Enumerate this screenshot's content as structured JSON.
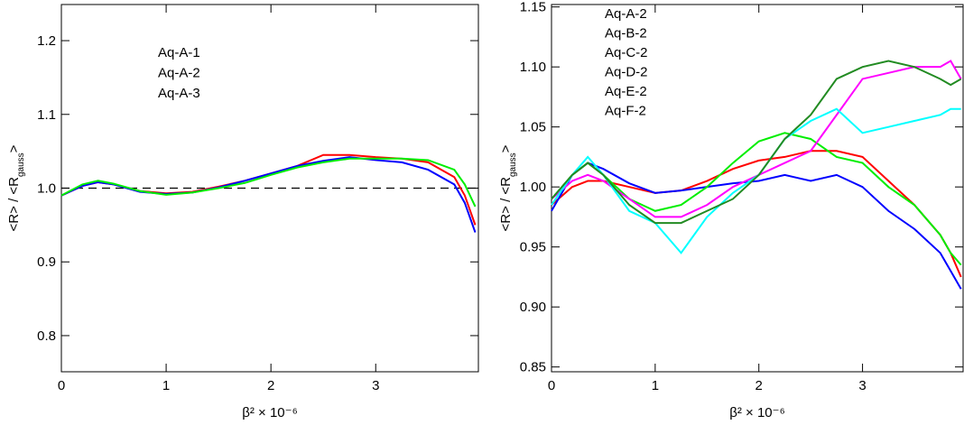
{
  "chart_data": [
    {
      "type": "line",
      "xlabel": "β² × 10⁻⁶",
      "ylabel": {
        "main": "<R> / <R",
        "sub": "gauss",
        "end": ">"
      },
      "x": [
        0,
        0.2,
        0.35,
        0.5,
        0.75,
        1.0,
        1.25,
        1.5,
        1.75,
        2.0,
        2.25,
        2.5,
        2.75,
        3.0,
        3.25,
        3.5,
        3.75,
        3.85,
        3.95
      ],
      "xlim": [
        0,
        3.98
      ],
      "xticks": [
        0,
        1,
        2,
        3
      ],
      "ylim": [
        0.751,
        1.249
      ],
      "yticks": [
        0.8,
        0.9,
        {
          "value": 1,
          "label": "1.0"
        },
        1.1,
        1.2
      ],
      "hline": 1,
      "series": [
        {
          "name": "Aq-A-1",
          "color": "#ff0000",
          "values": [
            0.99,
            1.003,
            1.008,
            1.005,
            0.996,
            0.993,
            0.995,
            1.002,
            1.01,
            1.02,
            1.03,
            1.045,
            1.045,
            1.042,
            1.04,
            1.035,
            1.015,
            0.99,
            0.95
          ]
        },
        {
          "name": "Aq-A-2",
          "color": "#0000ff",
          "values": [
            0.99,
            1.003,
            1.008,
            1.005,
            0.995,
            0.992,
            0.994,
            1.001,
            1.01,
            1.02,
            1.03,
            1.037,
            1.042,
            1.038,
            1.035,
            1.025,
            1.005,
            0.98,
            0.94
          ]
        },
        {
          "name": "Aq-A-3",
          "color": "#00ee00",
          "values": [
            0.99,
            1.005,
            1.01,
            1.006,
            0.996,
            0.991,
            0.994,
            1.0,
            1.007,
            1.018,
            1.028,
            1.035,
            1.04,
            1.04,
            1.04,
            1.038,
            1.025,
            1.005,
            0.975
          ]
        }
      ]
    },
    {
      "type": "line",
      "xlabel": "β² × 10⁻⁶",
      "ylabel": {
        "main": "<R> / <R",
        "sub": "gauss",
        "end": ">"
      },
      "x": [
        0,
        0.2,
        0.35,
        0.5,
        0.75,
        1.0,
        1.25,
        1.5,
        1.75,
        2.0,
        2.25,
        2.5,
        2.75,
        3.0,
        3.25,
        3.5,
        3.75,
        3.85,
        3.95
      ],
      "xlim": [
        0,
        3.97
      ],
      "xticks": [
        0,
        1,
        2,
        3
      ],
      "ylim": [
        0.846,
        1.152
      ],
      "yticks": [
        0.85,
        {
          "value": 0.9,
          "label": "0.90"
        },
        0.95,
        {
          "value": 1,
          "label": "1.00"
        },
        1.05,
        {
          "value": 1.1,
          "label": "1.10"
        },
        1.15
      ],
      "series": [
        {
          "name": "Aq-A-2",
          "color": "#ff0000",
          "values": [
            0.985,
            1.0,
            1.005,
            1.005,
            1.0,
            0.995,
            0.997,
            1.005,
            1.015,
            1.022,
            1.025,
            1.03,
            1.03,
            1.025,
            1.005,
            0.985,
            0.96,
            0.945,
            0.925
          ]
        },
        {
          "name": "Aq-B-2",
          "color": "#0000ff",
          "values": [
            0.98,
            1.01,
            1.02,
            1.015,
            1.003,
            0.995,
            0.997,
            1.0,
            1.003,
            1.005,
            1.01,
            1.005,
            1.01,
            1.0,
            0.98,
            0.965,
            0.945,
            0.93,
            0.915
          ]
        },
        {
          "name": "Aq-C-2",
          "color": "#00ee00",
          "values": [
            0.99,
            1.01,
            1.02,
            1.01,
            0.99,
            0.98,
            0.985,
            1.0,
            1.02,
            1.038,
            1.045,
            1.04,
            1.025,
            1.02,
            1.0,
            0.985,
            0.96,
            0.945,
            0.935
          ]
        },
        {
          "name": "Aq-D-2",
          "color": "#ff00ff",
          "values": [
            0.99,
            1.005,
            1.01,
            1.005,
            0.99,
            0.975,
            0.975,
            0.985,
            1.0,
            1.01,
            1.02,
            1.03,
            1.06,
            1.09,
            1.095,
            1.1,
            1.1,
            1.105,
            1.09
          ]
        },
        {
          "name": "Aq-E-2",
          "color": "#00ffff",
          "values": [
            0.985,
            1.01,
            1.025,
            1.01,
            0.98,
            0.97,
            0.945,
            0.975,
            0.995,
            1.01,
            1.04,
            1.055,
            1.065,
            1.045,
            1.05,
            1.055,
            1.06,
            1.065,
            1.065
          ]
        },
        {
          "name": "Aq-F-2",
          "color": "#228b22",
          "values": [
            0.99,
            1.01,
            1.02,
            1.01,
            0.985,
            0.97,
            0.97,
            0.98,
            0.99,
            1.01,
            1.04,
            1.06,
            1.09,
            1.1,
            1.105,
            1.1,
            1.09,
            1.085,
            1.09
          ]
        }
      ]
    }
  ]
}
